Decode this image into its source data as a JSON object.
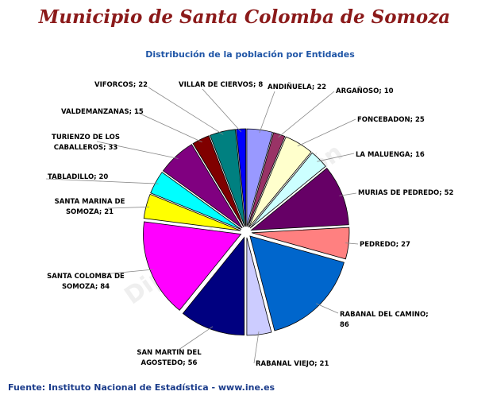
{
  "header": {
    "title": "Municipio de Santa Colomba de Somoza",
    "watermark": "Diputación de León"
  },
  "footer": {
    "source": "Fuente: Instituto Nacional de Estadística - www.ine.es"
  },
  "colors": {
    "title": "#8b1a1a",
    "chart_title": "#1f55a6",
    "source": "#1b3c8b"
  },
  "chart_data": {
    "type": "pie",
    "title": "Distribución de la población por Entidades",
    "start": "top",
    "direction": "clockwise",
    "exploded": true,
    "slices": [
      {
        "label": "ANDIÑUELA",
        "value": 22,
        "color": "#9999ff",
        "display": "ANDIÑUELA; 22"
      },
      {
        "label": "ARGAÑOSO",
        "value": 10,
        "color": "#993366",
        "display": "ARGAÑOSO; 10"
      },
      {
        "label": "FONCEBADON",
        "value": 25,
        "color": "#ffffcc",
        "display": "FONCEBADON; 25"
      },
      {
        "label": "LA MALUENGA",
        "value": 16,
        "color": "#ccffff",
        "display": "LA MALUENGA; 16"
      },
      {
        "label": "MURIAS DE PEDREDO",
        "value": 52,
        "color": "#660066",
        "display": "MURIAS DE PEDREDO; 52"
      },
      {
        "label": "PEDREDO",
        "value": 27,
        "color": "#ff8080",
        "display": "PEDREDO; 27"
      },
      {
        "label": "RABANAL DEL CAMINO",
        "value": 86,
        "color": "#0066cc",
        "display": [
          "RABANAL DEL CAMINO;",
          "86"
        ]
      },
      {
        "label": "RABANAL VIEJO",
        "value": 21,
        "color": "#ccccff",
        "display": "RABANAL VIEJO; 21"
      },
      {
        "label": "SAN MARTIN DEL AGOSTEDO",
        "value": 56,
        "color": "#000080",
        "display": [
          "SAN MARTIN DEL",
          "AGOSTEDO; 56"
        ]
      },
      {
        "label": "SANTA COLOMBA DE SOMOZA",
        "value": 84,
        "color": "#ff00ff",
        "display": [
          "SANTA COLOMBA DE",
          "SOMOZA; 84"
        ]
      },
      {
        "label": "SANTA MARINA DE SOMOZA",
        "value": 21,
        "color": "#ffff00",
        "display": [
          "SANTA MARINA DE",
          "SOMOZA; 21"
        ]
      },
      {
        "label": "TABLADILLO",
        "value": 20,
        "color": "#00ffff",
        "display": "TABLADILLO; 20"
      },
      {
        "label": "TURIENZO DE LOS CABALLEROS",
        "value": 33,
        "color": "#800080",
        "display": [
          "TURIENZO DE LOS",
          "CABALLEROS; 33"
        ]
      },
      {
        "label": "VALDEMANZANAS",
        "value": 15,
        "color": "#800000",
        "display": "VALDEMANZANAS; 15"
      },
      {
        "label": "VIFORCOS",
        "value": 22,
        "color": "#008080",
        "display": "VIFORCOS; 22"
      },
      {
        "label": "VILLAR DE CIERVOS",
        "value": 8,
        "color": "#0000ff",
        "display": "VILLAR DE CIERVOS; 8"
      }
    ]
  }
}
